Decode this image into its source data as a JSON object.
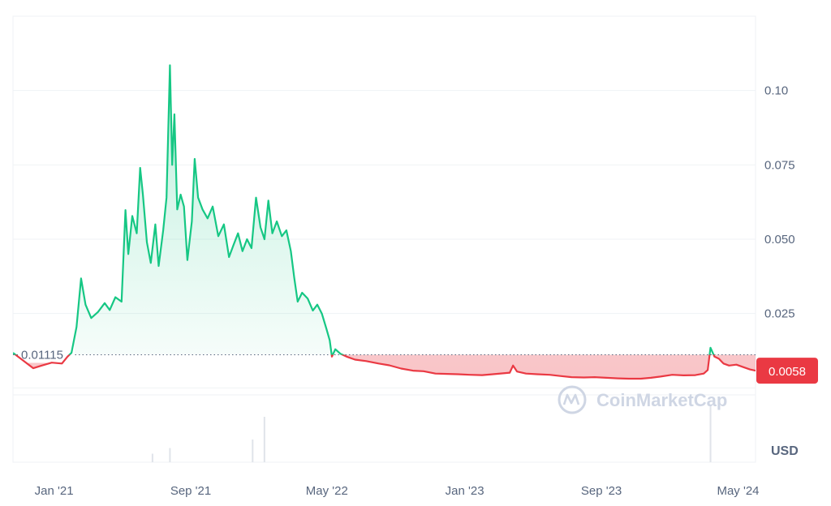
{
  "chart_data": {
    "type": "area",
    "currency": "USD",
    "baseline_value": 0.01115,
    "baseline_label": "0.01115",
    "current_value": 0.0058,
    "current_label": "0.0058",
    "ylim": [
      -0.025,
      0.125
    ],
    "y_ticks": [
      {
        "value": 0.1,
        "label": "0.10"
      },
      {
        "value": 0.075,
        "label": "0.075"
      },
      {
        "value": 0.05,
        "label": "0.050"
      },
      {
        "value": 0.025,
        "label": "0.025"
      }
    ],
    "x_ticks": [
      {
        "date": "2021-01-01",
        "label": "Jan '21"
      },
      {
        "date": "2021-09-01",
        "label": "Sep '21"
      },
      {
        "date": "2022-05-01",
        "label": "May '22"
      },
      {
        "date": "2023-01-01",
        "label": "Jan '23"
      },
      {
        "date": "2023-09-01",
        "label": "Sep '23"
      },
      {
        "date": "2024-05-01",
        "label": "May '24"
      }
    ],
    "xlim": [
      "2020-10-20",
      "2024-06-01"
    ],
    "series": [
      {
        "points": [
          [
            "2020-10-20",
            0.0118
          ],
          [
            "2020-11-05",
            0.0095
          ],
          [
            "2020-11-25",
            0.0066
          ],
          [
            "2020-12-10",
            0.0075
          ],
          [
            "2020-12-28",
            0.0085
          ],
          [
            "2021-01-15",
            0.0082
          ],
          [
            "2021-01-25",
            0.0105
          ],
          [
            "2021-02-01",
            0.0118
          ],
          [
            "2021-02-10",
            0.0205
          ],
          [
            "2021-02-18",
            0.0368
          ],
          [
            "2021-02-26",
            0.028
          ],
          [
            "2021-03-08",
            0.0235
          ],
          [
            "2021-03-20",
            0.0255
          ],
          [
            "2021-04-01",
            0.0285
          ],
          [
            "2021-04-10",
            0.0262
          ],
          [
            "2021-04-20",
            0.0305
          ],
          [
            "2021-05-01",
            0.029
          ],
          [
            "2021-05-08",
            0.0598
          ],
          [
            "2021-05-13",
            0.045
          ],
          [
            "2021-05-20",
            0.0578
          ],
          [
            "2021-05-28",
            0.052
          ],
          [
            "2021-06-03",
            0.074
          ],
          [
            "2021-06-08",
            0.065
          ],
          [
            "2021-06-15",
            0.049
          ],
          [
            "2021-06-22",
            0.042
          ],
          [
            "2021-06-30",
            0.055
          ],
          [
            "2021-07-06",
            0.041
          ],
          [
            "2021-07-14",
            0.053
          ],
          [
            "2021-07-20",
            0.064
          ],
          [
            "2021-07-26",
            0.1085
          ],
          [
            "2021-07-30",
            0.075
          ],
          [
            "2021-08-03",
            0.092
          ],
          [
            "2021-08-08",
            0.06
          ],
          [
            "2021-08-14",
            0.065
          ],
          [
            "2021-08-20",
            0.061
          ],
          [
            "2021-08-26",
            0.043
          ],
          [
            "2021-09-03",
            0.056
          ],
          [
            "2021-09-08",
            0.077
          ],
          [
            "2021-09-14",
            0.064
          ],
          [
            "2021-09-22",
            0.06
          ],
          [
            "2021-10-01",
            0.057
          ],
          [
            "2021-10-10",
            0.061
          ],
          [
            "2021-10-20",
            0.051
          ],
          [
            "2021-10-30",
            0.055
          ],
          [
            "2021-11-08",
            0.044
          ],
          [
            "2021-11-16",
            0.048
          ],
          [
            "2021-11-24",
            0.052
          ],
          [
            "2021-12-02",
            0.046
          ],
          [
            "2021-12-10",
            0.05
          ],
          [
            "2021-12-18",
            0.047
          ],
          [
            "2021-12-26",
            0.064
          ],
          [
            "2022-01-03",
            0.054
          ],
          [
            "2022-01-10",
            0.05
          ],
          [
            "2022-01-17",
            0.063
          ],
          [
            "2022-01-24",
            0.052
          ],
          [
            "2022-02-01",
            0.056
          ],
          [
            "2022-02-10",
            0.051
          ],
          [
            "2022-02-18",
            0.053
          ],
          [
            "2022-02-26",
            0.046
          ],
          [
            "2022-03-04",
            0.037
          ],
          [
            "2022-03-10",
            0.029
          ],
          [
            "2022-03-18",
            0.032
          ],
          [
            "2022-03-28",
            0.03
          ],
          [
            "2022-04-06",
            0.026
          ],
          [
            "2022-04-14",
            0.028
          ],
          [
            "2022-04-22",
            0.025
          ],
          [
            "2022-04-30",
            0.02
          ],
          [
            "2022-05-06",
            0.016
          ],
          [
            "2022-05-10",
            0.0105
          ],
          [
            "2022-05-16",
            0.013
          ],
          [
            "2022-05-25",
            0.0115
          ],
          [
            "2022-06-05",
            0.0105
          ],
          [
            "2022-06-20",
            0.0095
          ],
          [
            "2022-07-10",
            0.009
          ],
          [
            "2022-08-01",
            0.0082
          ],
          [
            "2022-08-20",
            0.0076
          ],
          [
            "2022-09-10",
            0.0065
          ],
          [
            "2022-10-01",
            0.0058
          ],
          [
            "2022-10-20",
            0.0056
          ],
          [
            "2022-11-10",
            0.0048
          ],
          [
            "2022-12-01",
            0.0047
          ],
          [
            "2022-12-20",
            0.0046
          ],
          [
            "2023-01-10",
            0.0044
          ],
          [
            "2023-02-01",
            0.0043
          ],
          [
            "2023-02-20",
            0.0046
          ],
          [
            "2023-03-10",
            0.0049
          ],
          [
            "2023-03-22",
            0.0051
          ],
          [
            "2023-03-28",
            0.0075
          ],
          [
            "2023-04-04",
            0.0055
          ],
          [
            "2023-04-20",
            0.0048
          ],
          [
            "2023-05-10",
            0.0046
          ],
          [
            "2023-06-01",
            0.0044
          ],
          [
            "2023-06-20",
            0.004
          ],
          [
            "2023-07-10",
            0.0036
          ],
          [
            "2023-08-01",
            0.0035
          ],
          [
            "2023-08-20",
            0.0036
          ],
          [
            "2023-09-10",
            0.0034
          ],
          [
            "2023-10-01",
            0.0032
          ],
          [
            "2023-10-20",
            0.0031
          ],
          [
            "2023-11-10",
            0.0031
          ],
          [
            "2023-11-28",
            0.0034
          ],
          [
            "2023-12-15",
            0.0038
          ],
          [
            "2024-01-05",
            0.0044
          ],
          [
            "2024-01-25",
            0.0042
          ],
          [
            "2024-02-15",
            0.0043
          ],
          [
            "2024-03-01",
            0.0048
          ],
          [
            "2024-03-08",
            0.006
          ],
          [
            "2024-03-13",
            0.0135
          ],
          [
            "2024-03-20",
            0.0105
          ],
          [
            "2024-03-28",
            0.0098
          ],
          [
            "2024-04-05",
            0.0082
          ],
          [
            "2024-04-15",
            0.0075
          ],
          [
            "2024-04-28",
            0.0078
          ],
          [
            "2024-05-10",
            0.007
          ],
          [
            "2024-05-22",
            0.0062
          ],
          [
            "2024-06-01",
            0.0058
          ]
        ]
      }
    ],
    "volume_spikes": [
      {
        "date": "2021-06-25",
        "value": 0.15
      },
      {
        "date": "2021-07-26",
        "value": 0.25
      },
      {
        "date": "2021-12-20",
        "value": 0.4
      },
      {
        "date": "2022-01-10",
        "value": 0.8
      },
      {
        "date": "2024-03-13",
        "value": 1.0
      }
    ],
    "colors": {
      "up_line": "#16c784",
      "down_line": "#ea3943",
      "up_fill": "#16c784",
      "down_fill": "#ea3943",
      "grid": "#eff2f5",
      "axis_text": "#58667e",
      "badge": "#ea3943",
      "watermark": "#cfd6e4"
    }
  },
  "watermark": {
    "text": "CoinMarketCap",
    "logo": "coinmarketcap-logo-icon"
  }
}
